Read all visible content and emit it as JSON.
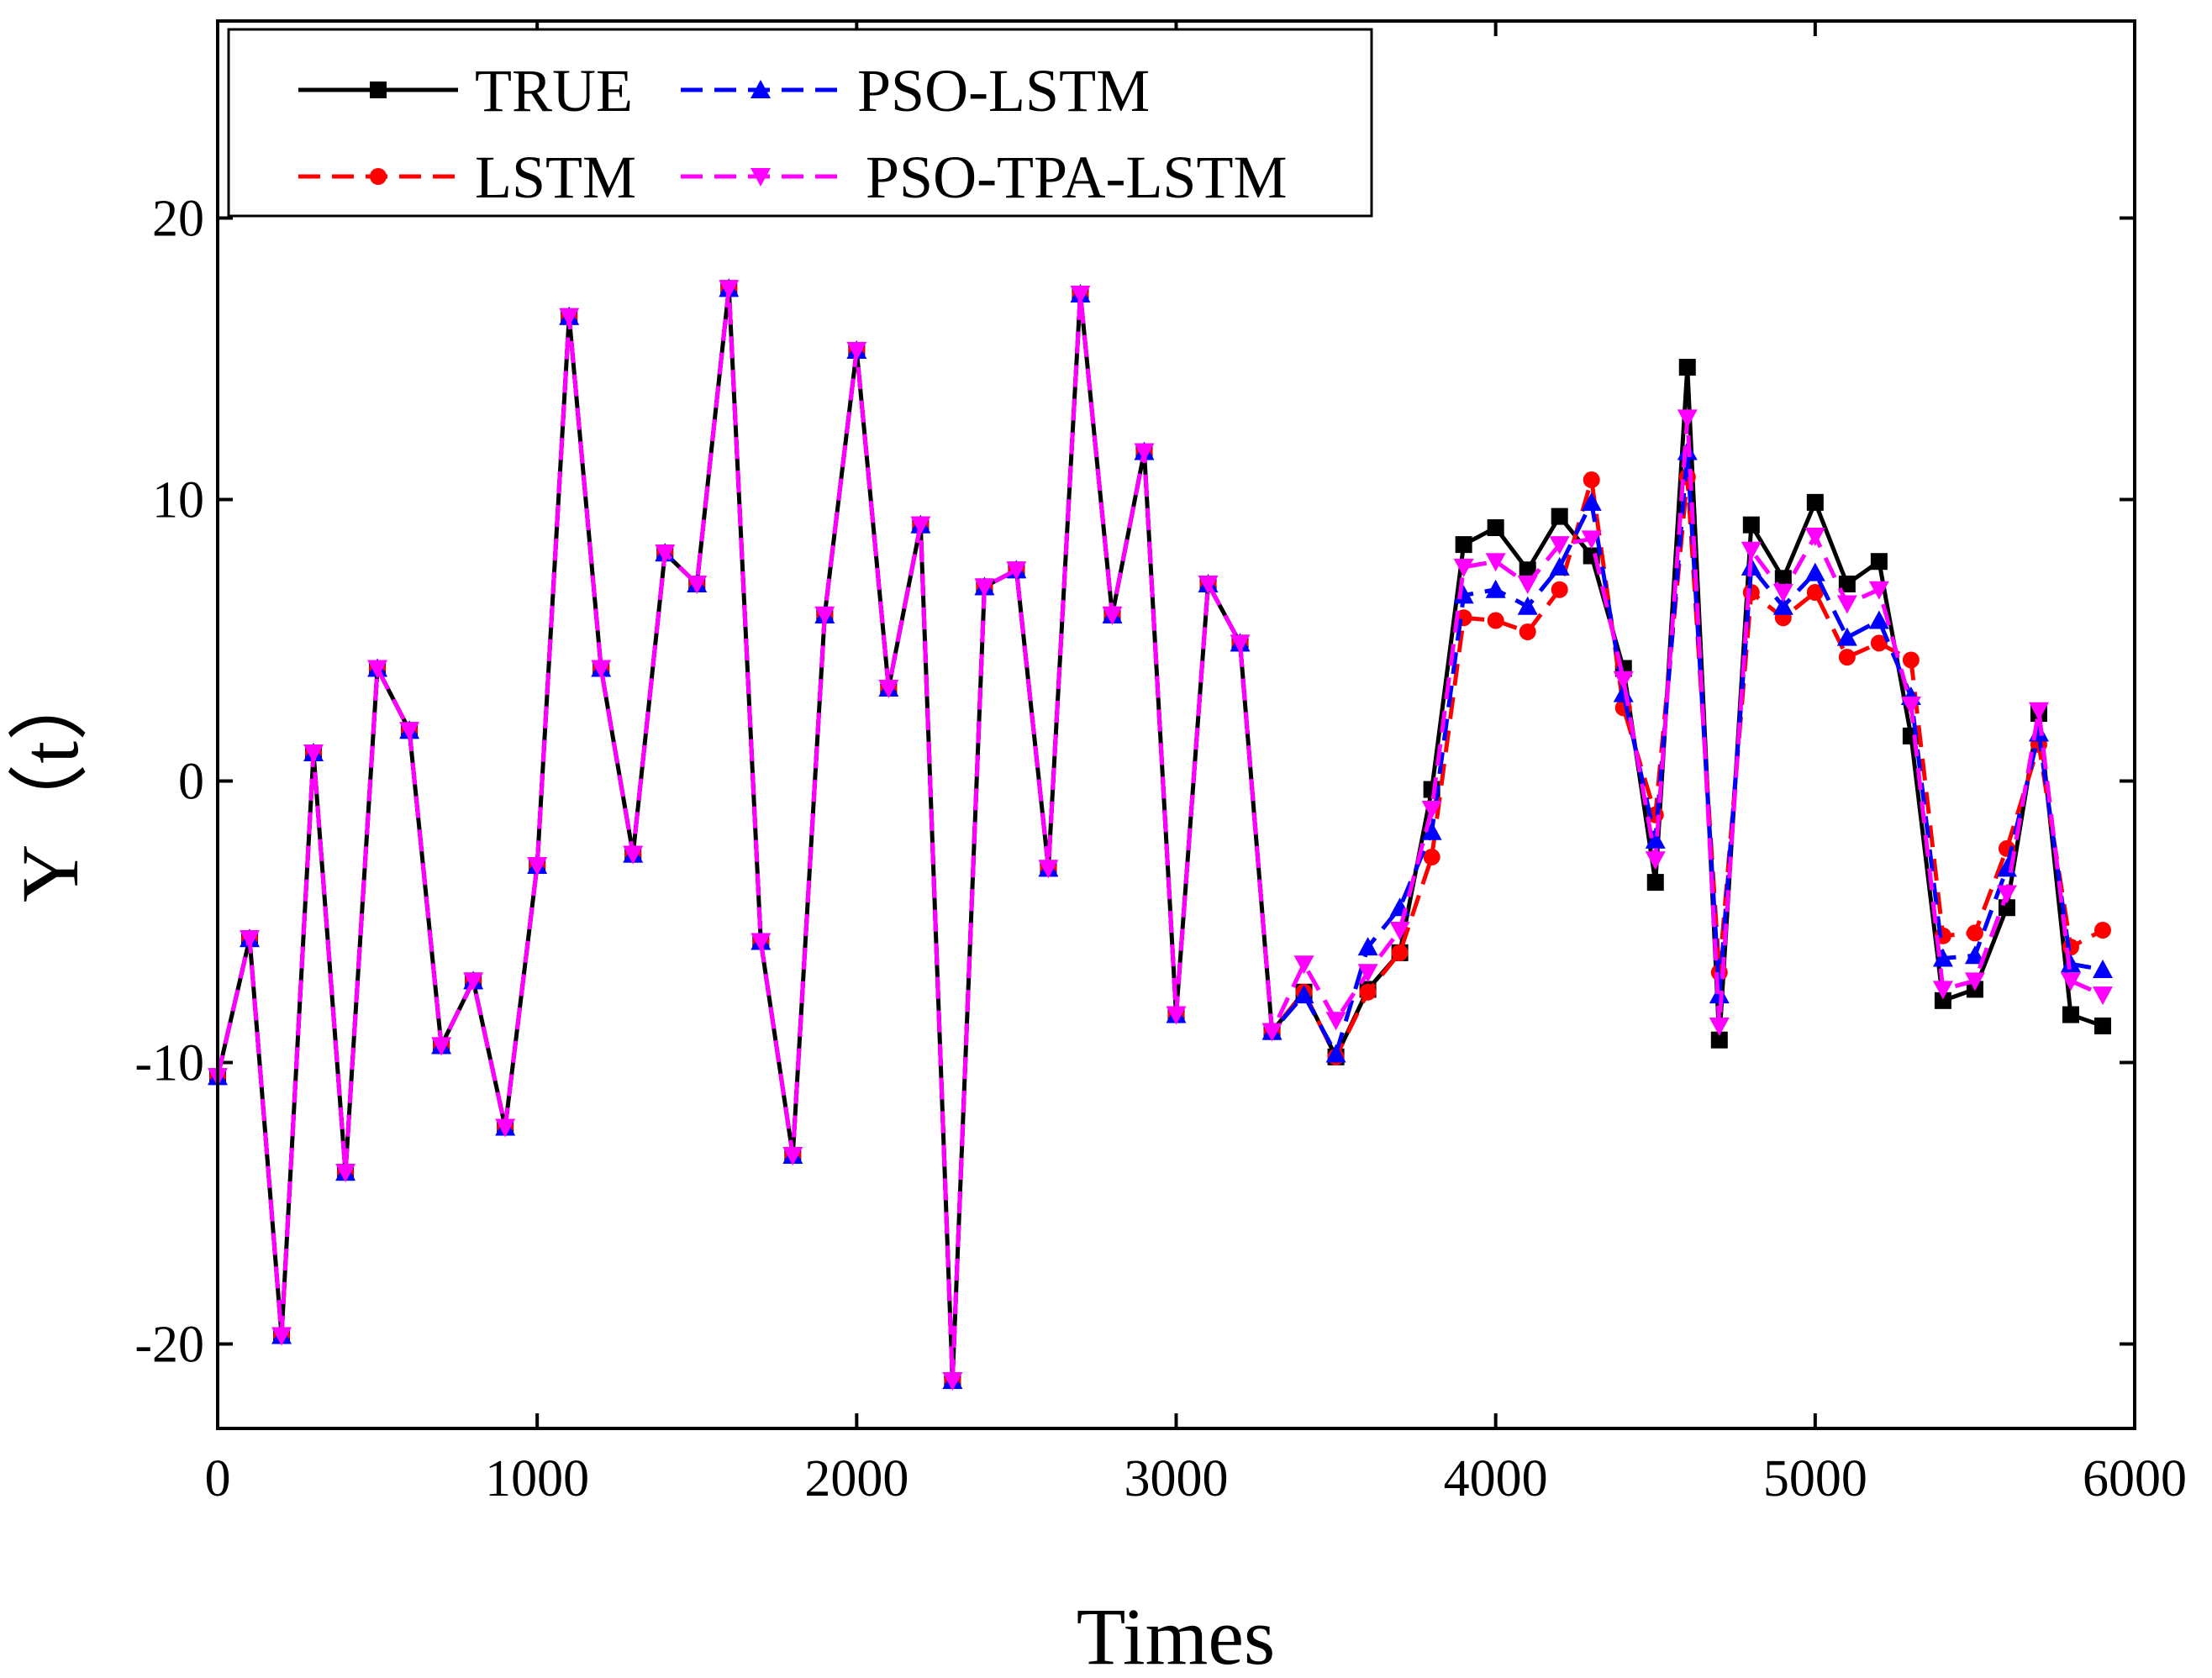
{
  "chart_data": {
    "type": "line",
    "title": "",
    "xlabel": "Times",
    "ylabel": "Y（t）",
    "xlim": [
      0,
      6000
    ],
    "ylim": [
      -23,
      27
    ],
    "xticks": [
      0,
      1000,
      2000,
      3000,
      4000,
      5000,
      6000
    ],
    "yticks": [
      -20,
      -10,
      0,
      10,
      20
    ],
    "legend_position": "top-left",
    "x": [
      0,
      100,
      200,
      300,
      400,
      500,
      600,
      700,
      800,
      900,
      1000,
      1100,
      1200,
      1300,
      1400,
      1500,
      1600,
      1700,
      1800,
      1900,
      2000,
      2100,
      2200,
      2300,
      2400,
      2500,
      2600,
      2700,
      2800,
      2900,
      3000,
      3100,
      3200,
      3300,
      3400,
      3500,
      3600,
      3700,
      3800,
      3900,
      4000,
      4100,
      4200,
      4300,
      4400,
      4500,
      4600,
      4700,
      4800,
      4900,
      5000,
      5100,
      5200,
      5300,
      5400,
      5500,
      5600,
      5700,
      5800,
      5900
    ],
    "series": [
      {
        "name": "TRUE",
        "color": "#000000",
        "dash": "solid",
        "marker": "square",
        "values": [
          -10.5,
          -5.6,
          -19.7,
          1.0,
          -13.9,
          4.0,
          1.8,
          -9.4,
          -7.1,
          -12.3,
          -3.0,
          16.5,
          4.0,
          -2.6,
          8.1,
          7.0,
          17.5,
          -5.7,
          -13.3,
          5.9,
          15.3,
          3.3,
          9.1,
          -21.3,
          6.9,
          7.5,
          -3.1,
          17.3,
          5.9,
          11.7,
          -8.3,
          7.0,
          4.9,
          -8.9,
          -7.5,
          -9.8,
          -7.4,
          -6.1,
          -0.3,
          8.4,
          9.0,
          7.5,
          9.4,
          8.0,
          4.0,
          -3.6,
          14.7,
          -9.2,
          9.1,
          7.2,
          9.9,
          7.0,
          7.8,
          1.6,
          -7.8,
          -7.4,
          -4.5,
          2.4,
          -8.3,
          -8.7
        ]
      },
      {
        "name": "LSTM",
        "color": "#ff0000",
        "dash": "dashed",
        "marker": "circle",
        "values": [
          -10.5,
          -5.6,
          -19.7,
          1.0,
          -13.9,
          4.0,
          1.8,
          -9.4,
          -7.1,
          -12.3,
          -3.0,
          16.5,
          4.0,
          -2.6,
          8.1,
          7.0,
          17.5,
          -5.7,
          -13.3,
          5.9,
          15.3,
          3.3,
          9.1,
          -21.3,
          6.9,
          7.5,
          -3.1,
          17.3,
          5.9,
          11.7,
          -8.3,
          7.0,
          4.9,
          -8.9,
          -7.5,
          -9.8,
          -7.5,
          -6.1,
          -2.7,
          5.8,
          5.7,
          5.3,
          6.8,
          10.7,
          2.6,
          -1.2,
          10.8,
          -6.8,
          6.7,
          5.8,
          6.7,
          4.4,
          4.9,
          4.3,
          -5.5,
          -5.4,
          -2.4,
          1.3,
          -5.9,
          -5.3
        ]
      },
      {
        "name": "PSO-LSTM",
        "color": "#0000ff",
        "dash": "dashed",
        "marker": "triangle-up",
        "values": [
          -10.5,
          -5.6,
          -19.7,
          1.0,
          -13.9,
          4.0,
          1.8,
          -9.4,
          -7.1,
          -12.3,
          -3.0,
          16.5,
          4.0,
          -2.6,
          8.1,
          7.0,
          17.5,
          -5.7,
          -13.3,
          5.9,
          15.3,
          3.3,
          9.1,
          -21.3,
          6.9,
          7.5,
          -3.1,
          17.3,
          5.9,
          11.7,
          -8.3,
          7.0,
          4.9,
          -8.9,
          -7.6,
          -9.7,
          -5.9,
          -4.5,
          -1.8,
          6.6,
          6.8,
          6.2,
          7.6,
          9.9,
          3.1,
          -2.1,
          11.7,
          -7.6,
          7.6,
          6.2,
          7.4,
          5.1,
          5.7,
          3.0,
          -6.3,
          -6.2,
          -3.1,
          1.7,
          -6.5,
          -6.7
        ]
      },
      {
        "name": "PSO-TPA-LSTM",
        "color": "#ff00ff",
        "dash": "dashed",
        "marker": "triangle-down",
        "values": [
          -10.5,
          -5.6,
          -19.7,
          1.0,
          -13.9,
          4.0,
          1.8,
          -9.4,
          -7.1,
          -12.3,
          -3.0,
          16.5,
          4.0,
          -2.6,
          8.1,
          7.0,
          17.5,
          -5.7,
          -13.3,
          5.9,
          15.3,
          3.3,
          9.1,
          -21.3,
          6.9,
          7.5,
          -3.1,
          17.3,
          5.9,
          11.7,
          -8.3,
          7.0,
          4.9,
          -8.9,
          -6.5,
          -8.5,
          -6.8,
          -5.3,
          -1.0,
          7.6,
          7.8,
          7.0,
          8.4,
          8.6,
          3.6,
          -2.8,
          12.9,
          -8.7,
          8.2,
          6.7,
          8.7,
          6.3,
          6.8,
          2.7,
          -7.4,
          -7.1,
          -4.0,
          2.5,
          -7.1,
          -7.6
        ]
      }
    ]
  }
}
